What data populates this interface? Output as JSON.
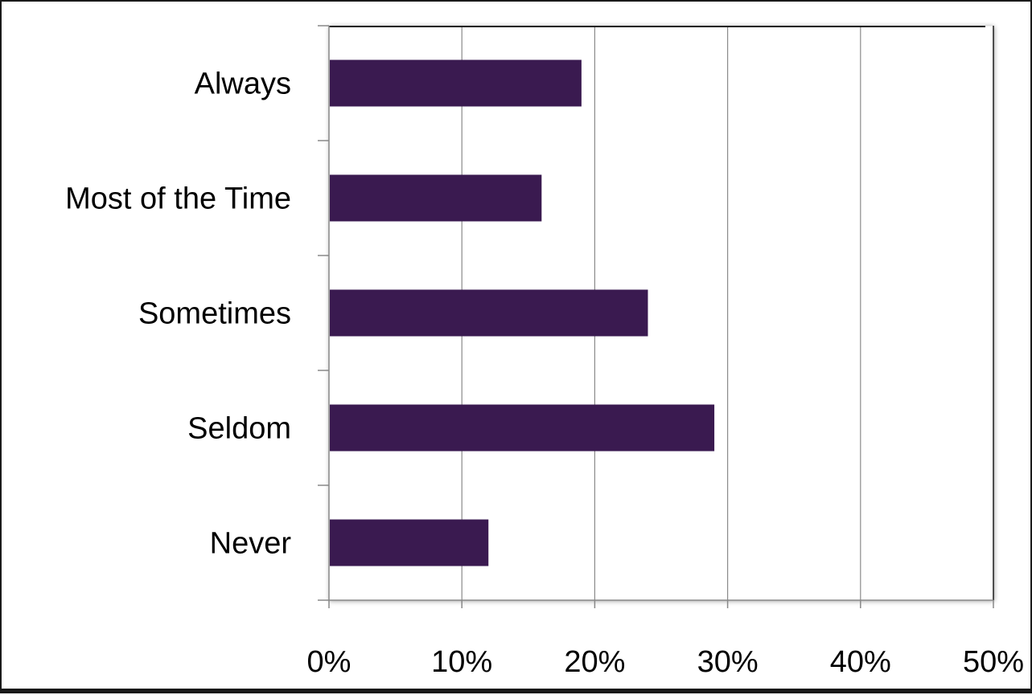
{
  "chart_data": {
    "type": "bar",
    "orientation": "horizontal",
    "categories": [
      "Always",
      "Most of the Time",
      "Sometimes",
      "Seldom",
      "Never"
    ],
    "values": [
      19,
      16,
      24,
      29,
      12
    ],
    "unit": "%",
    "xlim": [
      0,
      50
    ],
    "ticks": [
      "0%",
      "10%",
      "20%",
      "30%",
      "40%",
      "50%"
    ],
    "tick_values": [
      0,
      10,
      20,
      30,
      40,
      50
    ],
    "grid": true,
    "legend": "none",
    "bar_color": "#3a1a50",
    "grid_color": "#8a8a8a"
  }
}
